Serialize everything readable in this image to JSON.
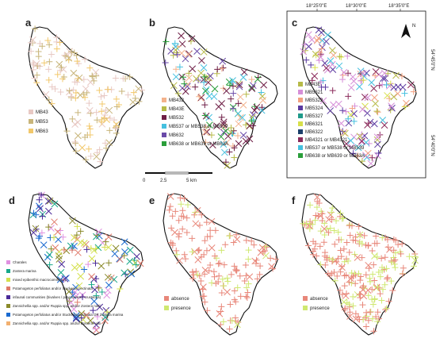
{
  "colors": {
    "MB43": "#e8c9c4",
    "MB53": "#c8b57a",
    "MB63": "#f2c86b",
    "MB432": "#f3b28c",
    "MB43E": "#b7ba48",
    "MB532": "#6e1e46",
    "MB537_38_39": "#45c0df",
    "MB632": "#6a4aa8",
    "MB638_39_3A": "#2a9e3a",
    "MB5321": "#d68fd8",
    "MB5322": "#f2a080",
    "MB5324": "#5b3aa0",
    "MB5327": "#1f9a8a",
    "MB6321": "#d7e04a",
    "MB6322": "#1b3f6a",
    "MB4321_4321": "#8a2a5a",
    "Charales": "#e090e0",
    "Zostera": "#17a88a",
    "mixed": "#d4e04c",
    "Potamogeton": "#e07a6a",
    "infaunal": "#4a2a98",
    "Zannichellia": "#8a8a2a",
    "Potam_Zost": "#1a6ad0",
    "Zann_Ruppia": "#f2b070",
    "absence": "#e8877a",
    "presence": "#cfe870"
  },
  "panels": [
    {
      "letter": "a",
      "legend": [
        {
          "label": "MB43",
          "color": "MB43"
        },
        {
          "label": "MB53",
          "color": "MB53"
        },
        {
          "label": "MB63",
          "color": "MB63"
        }
      ]
    },
    {
      "letter": "b",
      "legend": [
        {
          "label": "MB432",
          "color": "MB432"
        },
        {
          "label": "MB43E",
          "color": "MB43E"
        },
        {
          "label": "MB532",
          "color": "MB532"
        },
        {
          "label": "MB537 or MB538 or MB539",
          "color": "MB537_38_39"
        },
        {
          "label": "MB632",
          "color": "MB632"
        },
        {
          "label": "MB638 or MB639 or MB63A",
          "color": "MB638_39_3A"
        }
      ]
    },
    {
      "letter": "c",
      "legend": [
        {
          "label": "MB43E",
          "color": "MB43E"
        },
        {
          "label": "MB5321",
          "color": "MB5321"
        },
        {
          "label": "MB5322",
          "color": "MB5322"
        },
        {
          "label": "MB5324",
          "color": "MB5324"
        },
        {
          "label": "MB5327",
          "color": "MB5327"
        },
        {
          "label": "MB6321",
          "color": "MB6321"
        },
        {
          "label": "MB6322",
          "color": "MB6322"
        },
        {
          "label": "MB4321 or MB4321",
          "color": "MB4321_4321"
        },
        {
          "label": "MB537 or MB538 or MB539",
          "color": "MB537_38_39"
        },
        {
          "label": "MB638 or MB639 or MB63A",
          "color": "MB638_39_3A"
        }
      ]
    },
    {
      "letter": "d",
      "legend": [
        {
          "label": "Charales",
          "color": "Charales"
        },
        {
          "label": "Zostera marina",
          "color": "Zostera"
        },
        {
          "label": "mixed epibenthic macrocommunity",
          "color": "mixed"
        },
        {
          "label": "Potamogeton perfoliatus and/or Stuckenia pectinata",
          "color": "Potamogeton"
        },
        {
          "label": "infaunal communities (bivalves / polychaetes / crustacea)",
          "color": "infaunal"
        },
        {
          "label": "Zannichellia spp. and/or Ruppia spp. and/or Zostera noltii",
          "color": "Zannichellia"
        },
        {
          "label": "Potamogeton perfoliatus and/or Stuckenia pectinata OR Zostera marina",
          "color": "Potam_Zost"
        },
        {
          "label": "Zannichellia spp. and/or Ruppia spp. and/or Zostera noltii",
          "color": "Zann_Ruppia"
        }
      ]
    },
    {
      "letter": "e",
      "legend": [
        {
          "label": "absence",
          "color": "absence"
        },
        {
          "label": "presence",
          "color": "presence"
        }
      ]
    },
    {
      "letter": "f",
      "legend": [
        {
          "label": "absence",
          "color": "absence"
        },
        {
          "label": "presence",
          "color": "presence"
        }
      ]
    }
  ],
  "scalebar": {
    "labels": [
      "0",
      "2.5",
      "5 km"
    ]
  },
  "graticule": {
    "lon": [
      "18°25'0\"E",
      "18°30'0\"E",
      "18°35'0\"E"
    ],
    "lat": [
      "54°45'0\"N",
      "54°40'0\"N"
    ]
  },
  "north_label": "N"
}
